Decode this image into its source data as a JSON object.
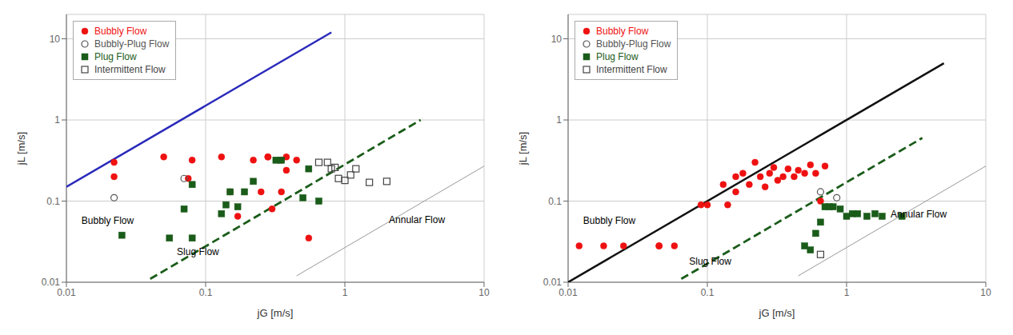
{
  "chart_data": [
    {
      "type": "scatter",
      "log": true,
      "grid": true,
      "legend": "upper left",
      "xlabel": "jG [m/s]",
      "ylabel": "jL [m/s]",
      "xlim": [
        0.01,
        10
      ],
      "ylim": [
        0.01,
        20
      ],
      "xticks": [
        0.01,
        0.1,
        1,
        10
      ],
      "yticks": [
        0.01,
        0.1,
        1,
        10
      ],
      "series": [
        {
          "type": "line",
          "color": "#2929bb",
          "line_style": "solid",
          "x": [
            0.01,
            0.8
          ],
          "values": [
            0.15,
            12.0
          ]
        },
        {
          "type": "line",
          "color": "#1a5c1a",
          "line_style": "dashed",
          "x": [
            0.04,
            3.5
          ],
          "values": [
            0.011,
            1.0
          ]
        },
        {
          "type": "line",
          "color": "#999999",
          "line_style": "solid",
          "x": [
            0.45,
            10.0
          ],
          "values": [
            0.012,
            0.27
          ]
        },
        {
          "type": "scatter",
          "name": "Bubbly Flow",
          "color": "#ee1111",
          "marker": "circle",
          "x": [
            0.022,
            0.022,
            0.05,
            0.075,
            0.08,
            0.13,
            0.15,
            0.17,
            0.22,
            0.25,
            0.28,
            0.3,
            0.35,
            0.38,
            0.45,
            0.55,
            0.28,
            0.35,
            0.38
          ],
          "values": [
            0.3,
            0.2,
            0.35,
            0.19,
            0.32,
            0.35,
            0.13,
            0.065,
            0.32,
            0.13,
            0.35,
            0.08,
            0.13,
            0.35,
            0.32,
            0.035,
            0.35,
            0.32,
            0.24
          ]
        },
        {
          "type": "scatter",
          "name": "Bubbly-Plug Flow",
          "color": "#555555",
          "marker": "open_circle",
          "x": [
            0.022,
            0.07
          ],
          "values": [
            0.11,
            0.19
          ]
        },
        {
          "type": "scatter",
          "name": "Plug Flow",
          "color": "#1a5c1a",
          "marker": "square",
          "x": [
            0.025,
            0.055,
            0.07,
            0.08,
            0.08,
            0.13,
            0.14,
            0.15,
            0.17,
            0.19,
            0.22,
            0.32,
            0.35,
            0.5,
            0.55,
            0.65
          ],
          "values": [
            0.038,
            0.035,
            0.08,
            0.035,
            0.16,
            0.07,
            0.09,
            0.13,
            0.085,
            0.13,
            0.175,
            0.32,
            0.32,
            0.11,
            0.25,
            0.1
          ]
        },
        {
          "type": "scatter",
          "name": "Intermittent Flow",
          "color": "#444444",
          "marker": "open_square",
          "x": [
            0.65,
            0.75,
            0.8,
            0.85,
            0.9,
            1.0,
            1.1,
            1.2,
            1.5,
            2.0
          ],
          "values": [
            0.3,
            0.3,
            0.25,
            0.26,
            0.19,
            0.18,
            0.21,
            0.25,
            0.17,
            0.175
          ]
        }
      ],
      "annotations": [
        {
          "text": "Bubbly Flow",
          "x": 0.013,
          "y": 0.053
        },
        {
          "text": "Slug Flow",
          "x": 0.063,
          "y": 0.022
        },
        {
          "text": "Annular Flow",
          "x": 2.1,
          "y": 0.055
        }
      ]
    },
    {
      "type": "scatter",
      "log": true,
      "grid": true,
      "legend": "upper left",
      "xlabel": "jG [m/s]",
      "ylabel": "jL [m/s]",
      "xlim": [
        0.01,
        10
      ],
      "ylim": [
        0.01,
        20
      ],
      "xticks": [
        0.01,
        0.1,
        1,
        10
      ],
      "yticks": [
        0.01,
        0.1,
        1,
        10
      ],
      "series": [
        {
          "type": "line",
          "color": "#111111",
          "line_style": "solid",
          "x": [
            0.01,
            5.0
          ],
          "values": [
            0.01,
            5.0
          ]
        },
        {
          "type": "line",
          "color": "#1a5c1a",
          "line_style": "dashed",
          "x": [
            0.065,
            3.5
          ],
          "values": [
            0.011,
            0.6
          ]
        },
        {
          "type": "line",
          "color": "#999999",
          "line_style": "solid",
          "x": [
            0.45,
            10.0
          ],
          "values": [
            0.012,
            0.27
          ]
        },
        {
          "type": "scatter",
          "name": "Bubbly Flow",
          "color": "#ee1111",
          "marker": "circle",
          "x": [
            0.012,
            0.018,
            0.025,
            0.045,
            0.045,
            0.058,
            0.09,
            0.1,
            0.13,
            0.14,
            0.16,
            0.16,
            0.18,
            0.2,
            0.22,
            0.24,
            0.26,
            0.28,
            0.3,
            0.32,
            0.35,
            0.38,
            0.42,
            0.45,
            0.5,
            0.55,
            0.6,
            0.65,
            0.7
          ],
          "values": [
            0.028,
            0.028,
            0.028,
            0.028,
            0.028,
            0.028,
            0.09,
            0.09,
            0.16,
            0.09,
            0.2,
            0.13,
            0.22,
            0.16,
            0.3,
            0.2,
            0.15,
            0.22,
            0.26,
            0.18,
            0.2,
            0.25,
            0.2,
            0.24,
            0.22,
            0.28,
            0.22,
            0.1,
            0.27
          ]
        },
        {
          "type": "scatter",
          "name": "Bubbly-Plug Flow",
          "color": "#555555",
          "marker": "open_circle",
          "x": [
            0.65,
            0.85
          ],
          "values": [
            0.13,
            0.11
          ]
        },
        {
          "type": "scatter",
          "name": "Plug Flow",
          "color": "#1a5c1a",
          "marker": "square",
          "x": [
            0.5,
            0.55,
            0.6,
            0.65,
            0.7,
            0.75,
            0.8,
            0.9,
            1.0,
            1.1,
            1.2,
            1.4,
            1.6,
            1.8,
            2.5
          ],
          "values": [
            0.028,
            0.025,
            0.04,
            0.055,
            0.085,
            0.085,
            0.085,
            0.08,
            0.065,
            0.07,
            0.07,
            0.065,
            0.07,
            0.065,
            0.065
          ]
        },
        {
          "type": "scatter",
          "name": "Intermittent Flow",
          "color": "#444444",
          "marker": "open_square",
          "x": [
            0.65
          ],
          "values": [
            0.022
          ]
        }
      ],
      "annotations": [
        {
          "text": "Bubbly Flow",
          "x": 0.013,
          "y": 0.053
        },
        {
          "text": "Slug Flow",
          "x": 0.075,
          "y": 0.017
        },
        {
          "text": "Annular Flow",
          "x": 2.1,
          "y": 0.065
        }
      ]
    }
  ]
}
